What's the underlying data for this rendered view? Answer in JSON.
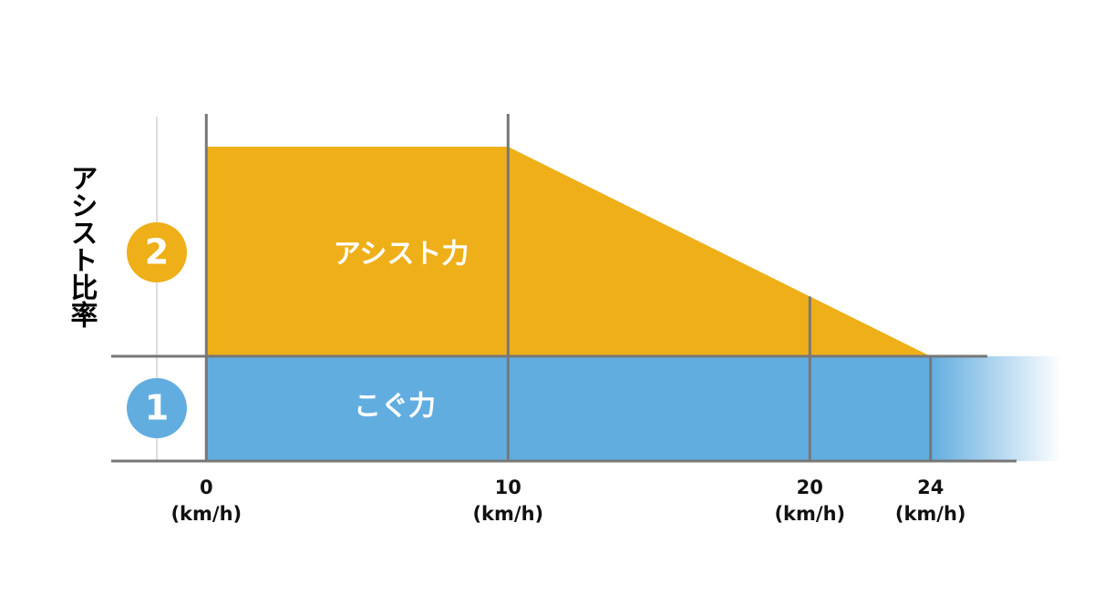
{
  "chart_data": {
    "type": "stacked-area",
    "y_label": "アシスト比率",
    "x": [
      0,
      10,
      20,
      24
    ],
    "x_unit": "(km/h)",
    "series": [
      {
        "name": "こぐ力",
        "badge": "1",
        "color": "#62ade0",
        "values": [
          1,
          1,
          1,
          1
        ]
      },
      {
        "name": "アシスト力",
        "badge": "2",
        "color": "#eeaf18",
        "values": [
          2,
          2,
          0.571,
          0
        ]
      }
    ],
    "xlim": [
      -3,
      27
    ],
    "xticks": [
      0,
      10,
      20,
      24
    ],
    "ylim": [
      0,
      3
    ]
  }
}
